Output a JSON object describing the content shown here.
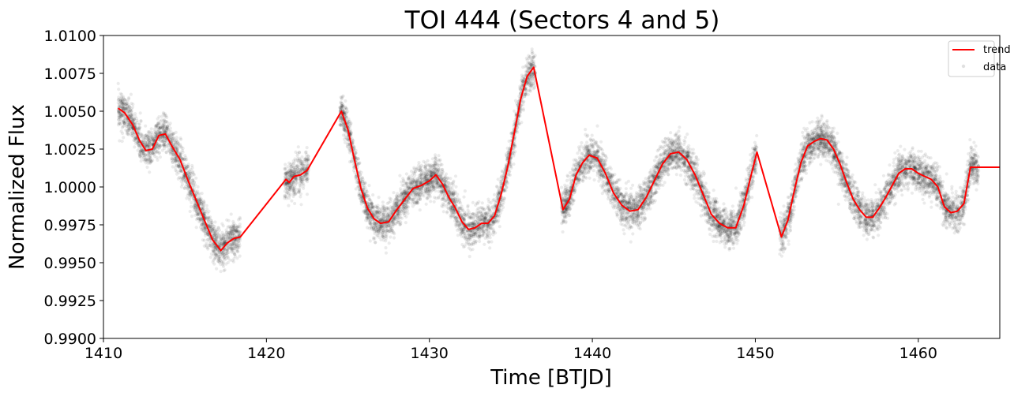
{
  "chart_data": {
    "type": "scatter",
    "title": "TOI 444 (Sectors 4 and 5)",
    "xlabel": "Time [BTJD]",
    "ylabel": "Normalized Flux",
    "xlim": [
      1410,
      1465
    ],
    "ylim": [
      0.99,
      1.01
    ],
    "xticks": [
      1410,
      1420,
      1430,
      1440,
      1450,
      1460
    ],
    "xtick_labels": [
      "1410",
      "1420",
      "1430",
      "1440",
      "1450",
      "1460"
    ],
    "yticks": [
      0.99,
      0.9925,
      0.995,
      0.9975,
      1.0,
      1.0025,
      1.005,
      1.0075,
      1.01
    ],
    "ytick_labels": [
      "0.9900",
      "0.9925",
      "0.9950",
      "0.9975",
      "1.0000",
      "1.0025",
      "1.0050",
      "1.0075",
      "1.0100"
    ],
    "grid": false,
    "legend_position": "top-right",
    "series": [
      {
        "name": "trend",
        "kind": "line",
        "color": "#ff0000",
        "x": [
          1410.9,
          1411.3,
          1411.8,
          1412.2,
          1412.6,
          1413.0,
          1413.4,
          1413.8,
          1414.2,
          1414.7,
          1415.2,
          1415.7,
          1416.2,
          1416.7,
          1417.2,
          1417.6,
          1418.0,
          1418.4,
          1421.2,
          1421.4,
          1421.7,
          1422.1,
          1422.5,
          1424.6,
          1425.0,
          1425.4,
          1425.8,
          1426.2,
          1426.6,
          1427.0,
          1427.5,
          1428.0,
          1428.5,
          1429.0,
          1429.5,
          1430.0,
          1430.4,
          1430.8,
          1431.2,
          1431.6,
          1432.0,
          1432.4,
          1432.8,
          1433.2,
          1433.6,
          1434.0,
          1434.4,
          1434.8,
          1435.2,
          1435.6,
          1436.0,
          1436.4,
          1438.2,
          1438.6,
          1439.0,
          1439.4,
          1439.8,
          1440.3,
          1440.8,
          1441.3,
          1441.8,
          1442.3,
          1442.8,
          1443.3,
          1443.8,
          1444.3,
          1444.8,
          1445.3,
          1445.8,
          1446.3,
          1446.8,
          1447.3,
          1447.8,
          1448.3,
          1448.8,
          1449.3,
          1449.7,
          1450.1,
          1451.6,
          1452.0,
          1452.4,
          1452.8,
          1453.2,
          1453.6,
          1454.0,
          1454.4,
          1454.8,
          1455.2,
          1455.6,
          1456.0,
          1456.4,
          1456.8,
          1457.2,
          1457.6,
          1458.0,
          1458.4,
          1458.8,
          1459.2,
          1459.6,
          1460.0,
          1460.4,
          1460.8,
          1461.2,
          1461.6,
          1462.0,
          1462.4,
          1462.8,
          1463.2,
          1463.6,
          1465.0
        ],
        "y": [
          1.0052,
          1.0049,
          1.0041,
          1.0031,
          1.0024,
          1.0025,
          1.0034,
          1.0035,
          1.0027,
          1.0018,
          1.0004,
          0.9991,
          0.9978,
          0.9965,
          0.9958,
          0.9963,
          0.9966,
          0.9967,
          1.0005,
          1.0003,
          1.0007,
          1.0008,
          1.0011,
          1.005,
          1.0038,
          1.0018,
          0.9999,
          0.9986,
          0.9979,
          0.9976,
          0.9977,
          0.9985,
          0.9992,
          0.9999,
          1.0001,
          1.0004,
          1.0008,
          1.0002,
          0.9993,
          0.9986,
          0.9977,
          0.9972,
          0.9973,
          0.9976,
          0.9976,
          0.9981,
          0.9995,
          1.0013,
          1.0035,
          1.0058,
          1.0073,
          1.0079,
          0.9985,
          0.9992,
          1.0008,
          1.0016,
          1.0021,
          1.0019,
          1.0009,
          0.9996,
          0.9988,
          0.9984,
          0.9985,
          0.9993,
          1.0004,
          1.0015,
          1.0022,
          1.0023,
          1.0018,
          1.0008,
          0.9995,
          0.9982,
          0.9976,
          0.9973,
          0.9973,
          0.9988,
          1.0006,
          1.0023,
          0.9967,
          0.9978,
          0.9998,
          1.0016,
          1.0027,
          1.003,
          1.0032,
          1.0031,
          1.0025,
          1.0015,
          1.0003,
          0.9992,
          0.9985,
          0.998,
          0.998,
          0.9986,
          0.9993,
          1.0001,
          1.0009,
          1.0012,
          1.0012,
          1.0009,
          1.0007,
          1.0005,
          1.0,
          0.9987,
          0.9983,
          0.9984,
          0.9989,
          1.0013,
          1.0013,
          1.0013
        ]
      },
      {
        "name": "data",
        "kind": "scatter",
        "color": "#000000",
        "alpha": 0.08,
        "note_segments": [
          [
            1410.9,
            1418.4
          ],
          [
            1421.1,
            1422.6
          ],
          [
            1424.5,
            1436.5
          ],
          [
            1438.1,
            1450.1
          ],
          [
            1451.5,
            1463.7
          ]
        ],
        "scatter_sigma": 0.0006
      }
    ]
  }
}
